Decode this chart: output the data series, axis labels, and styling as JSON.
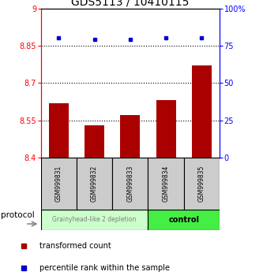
{
  "title": "GDS5113 / 10410115",
  "categories": [
    "GSM999831",
    "GSM999832",
    "GSM999833",
    "GSM999834",
    "GSM999835"
  ],
  "bar_values": [
    8.62,
    8.53,
    8.57,
    8.63,
    8.77
  ],
  "percentile_values": [
    80,
    79,
    79,
    80,
    80
  ],
  "bar_color": "#aa0000",
  "dot_color": "#0000cc",
  "ylim_left": [
    8.4,
    9.0
  ],
  "ylim_right": [
    0,
    100
  ],
  "yticks_left": [
    8.4,
    8.55,
    8.7,
    8.85,
    9.0
  ],
  "ytick_labels_left": [
    "8.4",
    "8.55",
    "8.7",
    "8.85",
    "9"
  ],
  "yticks_right": [
    0,
    25,
    50,
    75,
    100
  ],
  "ytick_labels_right": [
    "0",
    "25",
    "50",
    "75",
    "100%"
  ],
  "hlines": [
    8.55,
    8.7,
    8.85
  ],
  "group1_label": "Grainyhead-like 2 depletion",
  "group2_label": "control",
  "group1_color": "#ccffcc",
  "group2_color": "#44ee44",
  "protocol_label": "protocol",
  "legend_bar_label": "transformed count",
  "legend_dot_label": "percentile rank within the sample",
  "bar_width": 0.55,
  "background_color": "#ffffff",
  "title_fontsize": 10,
  "tick_fontsize": 7,
  "label_fontsize": 7
}
